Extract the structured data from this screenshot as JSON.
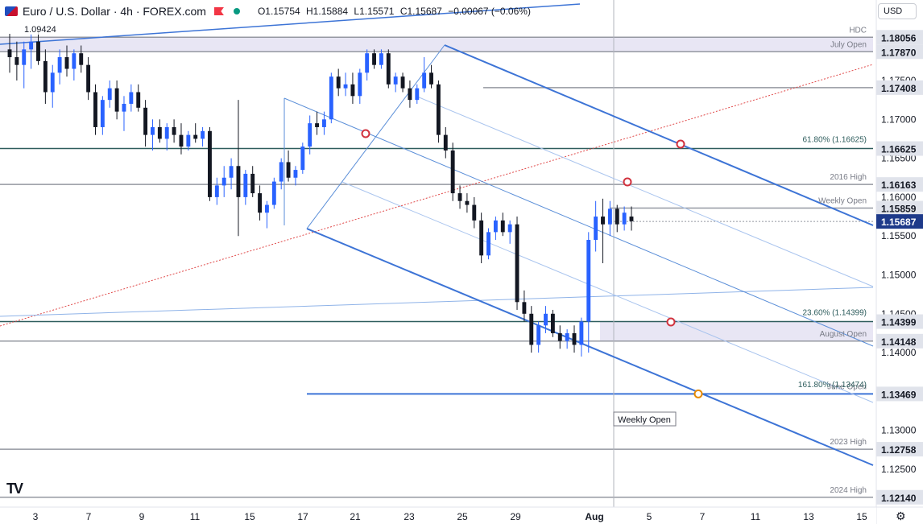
{
  "header": {
    "symbol": "Euro / U.S. Dollar · 4h · FOREX.com",
    "open": "O1.15754",
    "high": "H1.15884",
    "low": "L1.15571",
    "close": "C1.15687",
    "change": "−0.00067 (−0.06%)",
    "ref_label": "1.09424",
    "currency": "USD"
  },
  "icons": {
    "logo": "tradingview-logo",
    "settings": "gear-icon"
  },
  "colors": {
    "up": "#2962ff",
    "down": "#131722",
    "channel": "#3d74d6",
    "levels": "#787b86",
    "fib": "#2e5d5d",
    "trend": "#e04848",
    "marker": "#d1323e",
    "orange": "#e68a00"
  },
  "chart_data": {
    "type": "candlestick",
    "ylim": [
      1.212,
      1.1835
    ],
    "y_ticks": [
      "1.17500",
      "1.17000",
      "1.16500",
      "1.16000",
      "1.15500",
      "1.15000",
      "1.14500",
      "1.14000",
      "1.13000",
      "1.12500"
    ],
    "x_ticks": [
      "3",
      "7",
      "9",
      "11",
      "15",
      "17",
      "21",
      "23",
      "25",
      "29",
      "Aug",
      "5",
      "7",
      "11",
      "13",
      "15"
    ],
    "levels": [
      {
        "price": "1.18056",
        "label": "HDC",
        "kind": "gray"
      },
      {
        "price": "1.17870",
        "label": "July Open",
        "kind": "gray"
      },
      {
        "price": "1.17408",
        "label": "",
        "kind": "gray"
      },
      {
        "price": "1.16625",
        "label": "61.80% (1.16625)",
        "kind": "fib"
      },
      {
        "price": "1.16163",
        "label": "2016 High",
        "kind": "gray"
      },
      {
        "price": "1.15859",
        "label": "Weekly Open",
        "kind": "gray"
      },
      {
        "price": "1.14399",
        "label": "23.60% (1.14399)",
        "kind": "fib"
      },
      {
        "price": "1.14148",
        "label": "August Open",
        "kind": "gray"
      },
      {
        "price": "1.13469",
        "label": "June Open",
        "kind": "blue"
      },
      {
        "price": "",
        "label": "161.80% (1.13474)",
        "kind": "fibtext"
      },
      {
        "price": "1.12758",
        "label": "2023 High",
        "kind": "gray"
      },
      {
        "price": "1.12140",
        "label": "2024 High",
        "kind": "gray"
      }
    ],
    "last_price": "1.15687",
    "annotation": "Weekly Open",
    "candles": [
      [
        1.179,
        1.181,
        1.176,
        1.178
      ],
      [
        1.178,
        1.18,
        1.175,
        1.177
      ],
      [
        1.177,
        1.18,
        1.174,
        1.179
      ],
      [
        1.179,
        1.181,
        1.1765,
        1.18
      ],
      [
        1.18,
        1.1815,
        1.177,
        1.1775
      ],
      [
        1.1775,
        1.179,
        1.172,
        1.1735
      ],
      [
        1.1735,
        1.177,
        1.1715,
        1.176
      ],
      [
        1.176,
        1.179,
        1.1745,
        1.178
      ],
      [
        1.178,
        1.1795,
        1.1755,
        1.1765
      ],
      [
        1.1765,
        1.179,
        1.175,
        1.1785
      ],
      [
        1.1785,
        1.1795,
        1.176,
        1.177
      ],
      [
        1.177,
        1.178,
        1.1725,
        1.1735
      ],
      [
        1.1735,
        1.1745,
        1.168,
        1.169
      ],
      [
        1.169,
        1.173,
        1.168,
        1.1725
      ],
      [
        1.1725,
        1.175,
        1.1715,
        1.174
      ],
      [
        1.174,
        1.175,
        1.17,
        1.171
      ],
      [
        1.171,
        1.173,
        1.1685,
        1.172
      ],
      [
        1.172,
        1.1745,
        1.171,
        1.1735
      ],
      [
        1.1735,
        1.1745,
        1.171,
        1.1715
      ],
      [
        1.1715,
        1.1725,
        1.1665,
        1.168
      ],
      [
        1.168,
        1.17,
        1.166,
        1.169
      ],
      [
        1.169,
        1.17,
        1.167,
        1.1675
      ],
      [
        1.1675,
        1.1695,
        1.166,
        1.169
      ],
      [
        1.169,
        1.17,
        1.167,
        1.168
      ],
      [
        1.168,
        1.1695,
        1.1655,
        1.1665
      ],
      [
        1.1665,
        1.1685,
        1.166,
        1.168
      ],
      [
        1.168,
        1.1695,
        1.167,
        1.1675
      ],
      [
        1.1675,
        1.169,
        1.1665,
        1.1685
      ],
      [
        1.1685,
        1.169,
        1.1595,
        1.16
      ],
      [
        1.16,
        1.1625,
        1.159,
        1.1615
      ],
      [
        1.1615,
        1.164,
        1.16,
        1.1625
      ],
      [
        1.1625,
        1.165,
        1.161,
        1.164
      ],
      [
        1.164,
        1.1725,
        1.155,
        1.16
      ],
      [
        1.16,
        1.1635,
        1.159,
        1.163
      ],
      [
        1.163,
        1.164,
        1.16,
        1.1605
      ],
      [
        1.1605,
        1.1615,
        1.157,
        1.158
      ],
      [
        1.158,
        1.1595,
        1.156,
        1.159
      ],
      [
        1.159,
        1.1625,
        1.1585,
        1.162
      ],
      [
        1.162,
        1.165,
        1.161,
        1.1645
      ],
      [
        1.1645,
        1.166,
        1.162,
        1.1625
      ],
      [
        1.1625,
        1.164,
        1.1615,
        1.1635
      ],
      [
        1.1635,
        1.167,
        1.163,
        1.1665
      ],
      [
        1.1665,
        1.1705,
        1.1655,
        1.1695
      ],
      [
        1.1695,
        1.171,
        1.168,
        1.169
      ],
      [
        1.169,
        1.171,
        1.168,
        1.17
      ],
      [
        1.17,
        1.176,
        1.1695,
        1.1755
      ],
      [
        1.1755,
        1.1765,
        1.173,
        1.174
      ],
      [
        1.174,
        1.176,
        1.173,
        1.1745
      ],
      [
        1.1745,
        1.176,
        1.172,
        1.173
      ],
      [
        1.173,
        1.1765,
        1.172,
        1.176
      ],
      [
        1.176,
        1.179,
        1.175,
        1.1785
      ],
      [
        1.1785,
        1.179,
        1.1765,
        1.177
      ],
      [
        1.177,
        1.179,
        1.1765,
        1.1785
      ],
      [
        1.1785,
        1.179,
        1.174,
        1.1745
      ],
      [
        1.1745,
        1.176,
        1.1735,
        1.1755
      ],
      [
        1.1755,
        1.176,
        1.1735,
        1.174
      ],
      [
        1.174,
        1.175,
        1.1715,
        1.1725
      ],
      [
        1.1725,
        1.1745,
        1.172,
        1.174
      ],
      [
        1.174,
        1.178,
        1.1735,
        1.176
      ],
      [
        1.176,
        1.177,
        1.174,
        1.1745
      ],
      [
        1.1745,
        1.175,
        1.167,
        1.168
      ],
      [
        1.168,
        1.169,
        1.165,
        1.166
      ],
      [
        1.166,
        1.167,
        1.1595,
        1.1605
      ],
      [
        1.1605,
        1.1615,
        1.1585,
        1.1595
      ],
      [
        1.1595,
        1.1605,
        1.158,
        1.159
      ],
      [
        1.159,
        1.16,
        1.156,
        1.157
      ],
      [
        1.157,
        1.158,
        1.1515,
        1.1525
      ],
      [
        1.1525,
        1.156,
        1.152,
        1.1555
      ],
      [
        1.1555,
        1.1575,
        1.1545,
        1.157
      ],
      [
        1.157,
        1.158,
        1.155,
        1.1555
      ],
      [
        1.1555,
        1.157,
        1.154,
        1.1565
      ],
      [
        1.1565,
        1.1575,
        1.1455,
        1.1465
      ],
      [
        1.1465,
        1.148,
        1.144,
        1.145
      ],
      [
        1.145,
        1.146,
        1.14,
        1.141
      ],
      [
        1.141,
        1.144,
        1.14,
        1.1435
      ],
      [
        1.1435,
        1.146,
        1.1425,
        1.145
      ],
      [
        1.145,
        1.1455,
        1.142,
        1.1425
      ],
      [
        1.1425,
        1.1435,
        1.1405,
        1.1415
      ],
      [
        1.1415,
        1.143,
        1.1405,
        1.1425
      ],
      [
        1.1425,
        1.1435,
        1.14,
        1.141
      ],
      [
        1.141,
        1.1445,
        1.1395,
        1.144
      ],
      [
        1.144,
        1.1555,
        1.14,
        1.1545
      ],
      [
        1.1545,
        1.1595,
        1.153,
        1.1575
      ],
      [
        1.1575,
        1.1598,
        1.1515,
        1.1565
      ],
      [
        1.1565,
        1.1595,
        1.155,
        1.1585
      ],
      [
        1.1585,
        1.159,
        1.1555,
        1.1565
      ],
      [
        1.1565,
        1.1588,
        1.1557,
        1.158
      ],
      [
        1.1575,
        1.1588,
        1.1557,
        1.1569
      ]
    ]
  }
}
